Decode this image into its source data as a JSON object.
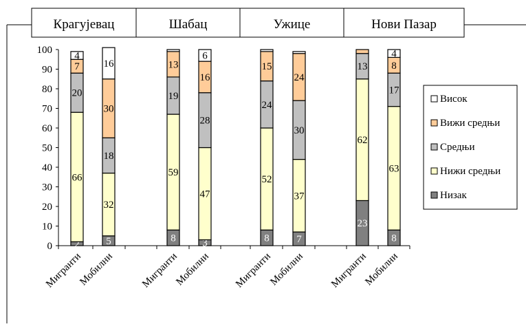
{
  "chart_data": {
    "type": "bar",
    "stacked": true,
    "groups": [
      "Крагујевац",
      "Шабац",
      "Ужице",
      "Нови Пазар"
    ],
    "categories": [
      "Мигранти",
      "Мобилни",
      "Мигранти",
      "Мобилни",
      "Мигранти",
      "Мобилни",
      "Мигранти",
      "Мобилни"
    ],
    "ylim": [
      0,
      100
    ],
    "yticks": [
      "0",
      "10",
      "20",
      "30",
      "40",
      "50",
      "60",
      "70",
      "80",
      "90",
      "100"
    ],
    "series": [
      {
        "name": "Низак",
        "color": "#808080",
        "values": [
          2,
          5,
          8,
          3,
          8,
          7,
          23,
          8
        ],
        "labels": [
          "2",
          "5",
          "8",
          "3",
          "8",
          "7",
          "23",
          "8"
        ]
      },
      {
        "name": "Нижи средњи",
        "color": "#ffffcc",
        "values": [
          66,
          32,
          59,
          47,
          52,
          37,
          62,
          63
        ],
        "labels": [
          "66",
          "32",
          "59",
          "47",
          "52",
          "37",
          "62",
          "63"
        ]
      },
      {
        "name": "Средњи",
        "color": "#c0c0c0",
        "values": [
          20,
          18,
          19,
          28,
          24,
          30,
          13,
          17
        ],
        "labels": [
          "20",
          "18",
          "19",
          "28",
          "24",
          "30",
          "13",
          "17"
        ]
      },
      {
        "name": "Вижи средњи",
        "color": "#ffcc99",
        "values": [
          7,
          30,
          13,
          16,
          15,
          24,
          2,
          8
        ],
        "labels": [
          "7",
          "30",
          "13",
          "16",
          "15",
          "24",
          "",
          "8"
        ]
      },
      {
        "name": "Висок",
        "color": "#ffffff",
        "values": [
          4,
          16,
          1,
          6,
          1,
          1,
          0,
          4
        ],
        "labels": [
          "4",
          "16",
          "",
          "6",
          "",
          "",
          "",
          "4"
        ]
      }
    ],
    "legend_position": "right",
    "grid": false
  }
}
